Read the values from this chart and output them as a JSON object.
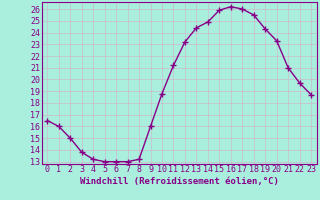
{
  "x": [
    0,
    1,
    2,
    3,
    4,
    5,
    6,
    7,
    8,
    9,
    10,
    11,
    12,
    13,
    14,
    15,
    16,
    17,
    18,
    19,
    20,
    21,
    22,
    23
  ],
  "y": [
    16.5,
    16.0,
    15.0,
    13.8,
    13.2,
    13.0,
    13.0,
    13.0,
    13.2,
    16.0,
    18.8,
    21.2,
    23.2,
    24.4,
    24.9,
    25.9,
    26.2,
    26.0,
    25.5,
    24.3,
    23.3,
    21.0,
    19.7,
    18.7
  ],
  "line_color": "#880088",
  "marker": "+",
  "marker_size": 4,
  "marker_linewidth": 1.0,
  "background_color": "#aaeedd",
  "grid_color": "#ccbbcc",
  "xlabel": "Windchill (Refroidissement éolien,°C)",
  "ylabel": "",
  "title": "",
  "ylim_min": 12.8,
  "ylim_max": 26.6,
  "xlim_min": -0.5,
  "xlim_max": 23.5,
  "yticks": [
    13,
    14,
    15,
    16,
    17,
    18,
    19,
    20,
    21,
    22,
    23,
    24,
    25,
    26
  ],
  "xticks": [
    0,
    1,
    2,
    3,
    4,
    5,
    6,
    7,
    8,
    9,
    10,
    11,
    12,
    13,
    14,
    15,
    16,
    17,
    18,
    19,
    20,
    21,
    22,
    23
  ],
  "tick_label_color": "#880088",
  "axis_color": "#880088",
  "xlabel_color": "#880088",
  "xlabel_fontsize": 6.5,
  "tick_fontsize": 6.0,
  "line_width": 1.0
}
